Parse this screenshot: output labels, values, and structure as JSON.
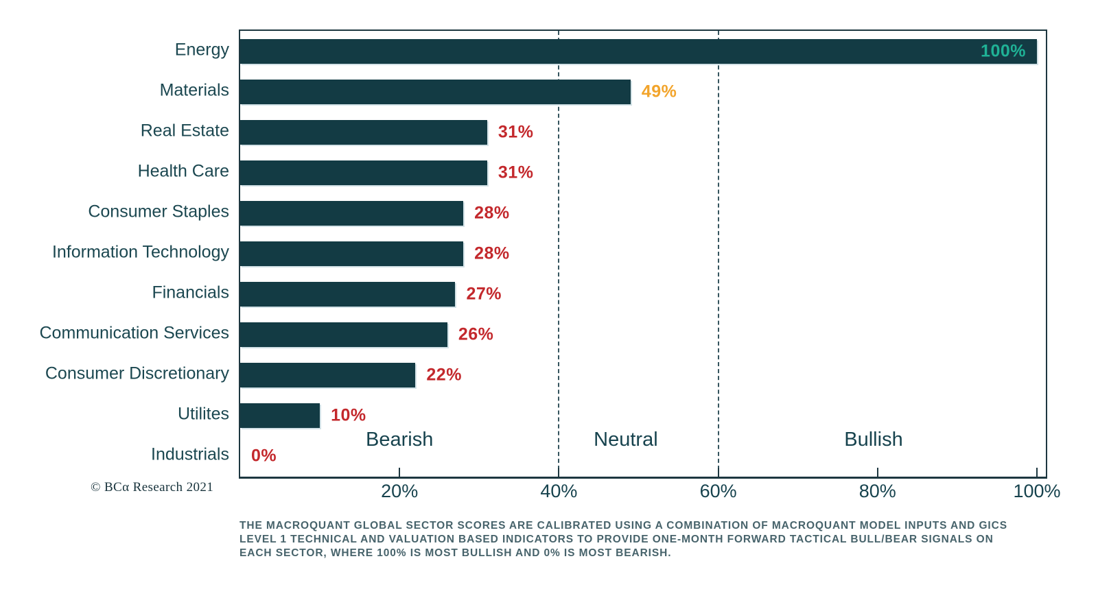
{
  "chart_data": {
    "type": "bar",
    "orientation": "horizontal",
    "title": "",
    "xlabel": "",
    "ylabel": "",
    "xlim": [
      0,
      100
    ],
    "categories": [
      "Energy",
      "Materials",
      "Real Estate",
      "Health Care",
      "Consumer Staples",
      "Information Technology",
      "Financials",
      "Communication Services",
      "Consumer Discretionary",
      "Utilites",
      "Industrials"
    ],
    "values": [
      100,
      49,
      31,
      31,
      28,
      28,
      27,
      26,
      22,
      10,
      0
    ],
    "value_labels": [
      "100%",
      "49%",
      "31%",
      "31%",
      "28%",
      "28%",
      "27%",
      "26%",
      "22%",
      "10%",
      "0%"
    ],
    "value_label_colors": [
      "#1fb296",
      "#f2a42b",
      "#c3282c",
      "#c3282c",
      "#c3282c",
      "#c3282c",
      "#c3282c",
      "#c3282c",
      "#c3282c",
      "#c3282c",
      "#c3282c"
    ],
    "bar_color": "#133b44",
    "gridlines": [
      40,
      60
    ],
    "gridline_style": "dashed-vertical",
    "zone_labels": [
      {
        "label": "Bearish",
        "x": 20
      },
      {
        "label": "Neutral",
        "x": 48.4
      },
      {
        "label": "Bullish",
        "x": 79.5
      }
    ],
    "xticks": [
      {
        "value": 20,
        "label": "20%"
      },
      {
        "value": 40,
        "label": "40%"
      },
      {
        "value": 60,
        "label": "60%"
      },
      {
        "value": 80,
        "label": "80%"
      },
      {
        "value": 100,
        "label": "100%"
      }
    ],
    "legend": null
  },
  "footer": {
    "copyright": "© BCα Research 2021",
    "note_lines": [
      "THE MACROQUANT GLOBAL SECTOR SCORES ARE CALIBRATED USING A COMBINATION OF MACROQUANT MODEL INPUTS AND GICS",
      "LEVEL 1 TECHNICAL AND VALUATION BASED INDICATORS TO PROVIDE ONE-MONTH FORWARD TACTICAL BULL/BEAR SIGNALS ON",
      "EACH SECTOR, WHERE 100% IS MOST BULLISH AND 0% IS MOST BEARISH."
    ]
  }
}
